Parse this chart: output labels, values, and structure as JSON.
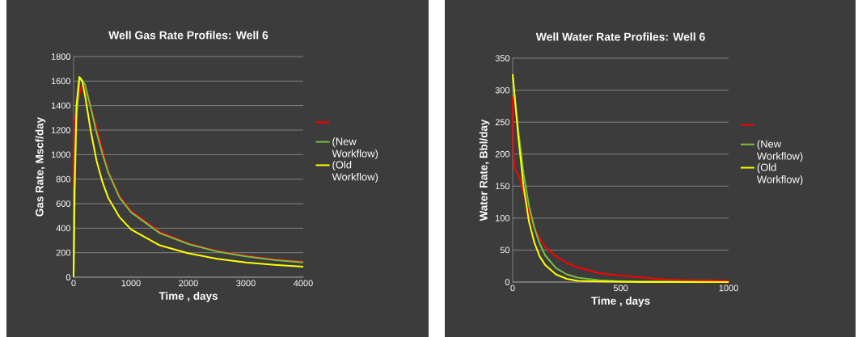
{
  "chart_data": [
    {
      "type": "line",
      "title": "Well Gas Rate Profiles: Well 6",
      "xlabel": "Time , days",
      "ylabel": "Gas Rate,  Mscf/day",
      "xlim": [
        0,
        4000
      ],
      "ylim": [
        0,
        1800
      ],
      "xticks": [
        0,
        1000,
        2000,
        3000,
        4000
      ],
      "yticks": [
        0,
        200,
        400,
        600,
        800,
        1000,
        1200,
        1400,
        1600,
        1800
      ],
      "grid": "y",
      "legend": "right",
      "series": [
        {
          "color": "#ff0000",
          "x": [
            0,
            2,
            30,
            80,
            140,
            200,
            300,
            400,
            500,
            600,
            800,
            1000,
            1500,
            2000,
            2500,
            3000,
            3500,
            4000
          ],
          "values": [
            720,
            1270,
            1300,
            1450,
            1560,
            1560,
            null,
            null,
            null,
            870,
            660,
            540,
            370,
            275,
            215,
            175,
            145,
            125
          ]
        },
        {
          "name": "(New Workflow)",
          "color": "#7ac143",
          "x": [
            0,
            20,
            50,
            100,
            130,
            200,
            300,
            400,
            500,
            600,
            800,
            1000,
            1500,
            2000,
            2500,
            3000,
            3500,
            4000
          ],
          "values": [
            0,
            700,
            1300,
            1600,
            1620,
            1570,
            1380,
            1180,
            1010,
            860,
            650,
            530,
            360,
            270,
            210,
            170,
            140,
            120
          ]
        },
        {
          "name": "(Old Workflow)",
          "color": "#ffff00",
          "x": [
            0,
            15,
            50,
            100,
            150,
            200,
            300,
            400,
            500,
            600,
            800,
            1000,
            1500,
            2000,
            2500,
            3000,
            3500,
            4000
          ],
          "values": [
            0,
            700,
            1400,
            1635,
            1600,
            1480,
            1190,
            950,
            780,
            650,
            490,
            390,
            260,
            195,
            150,
            120,
            100,
            85
          ]
        }
      ]
    },
    {
      "type": "line",
      "title": "Well Water Rate Profiles: Well 6",
      "xlabel": "Time , days",
      "ylabel": "Water  Rate, Bbl/day",
      "xlim": [
        0,
        1000
      ],
      "ylim": [
        0,
        350
      ],
      "xticks": [
        0,
        500,
        1000
      ],
      "yticks": [
        0,
        50,
        100,
        150,
        200,
        250,
        300,
        350
      ],
      "grid": "y",
      "legend": "right",
      "series": [
        {
          "color": "#ff0000",
          "x": [
            0,
            3,
            10,
            30,
            50,
            75,
            100,
            125,
            150,
            200,
            250,
            300,
            400,
            500,
            600,
            700,
            800,
            1000
          ],
          "values": [
            290,
            200,
            178,
            165,
            140,
            110,
            85,
            68,
            55,
            40,
            30,
            23,
            14,
            10,
            7,
            4,
            3,
            2
          ]
        },
        {
          "name": "(New Workflow)",
          "color": "#7ac143",
          "x": [
            0,
            25,
            50,
            75,
            100,
            125,
            150,
            200,
            250,
            300,
            400,
            500,
            700,
            1000
          ],
          "values": [
            320,
            240,
            170,
            120,
            85,
            60,
            42,
            22,
            12,
            7,
            3,
            1,
            1,
            0
          ]
        },
        {
          "name": "(Old Workflow)",
          "color": "#ffff00",
          "x": [
            0,
            25,
            50,
            75,
            100,
            125,
            150,
            200,
            250,
            300,
            400,
            600,
            1000
          ],
          "values": [
            325,
            230,
            150,
            95,
            62,
            40,
            27,
            12,
            5,
            2,
            1,
            0,
            0
          ]
        }
      ]
    }
  ]
}
